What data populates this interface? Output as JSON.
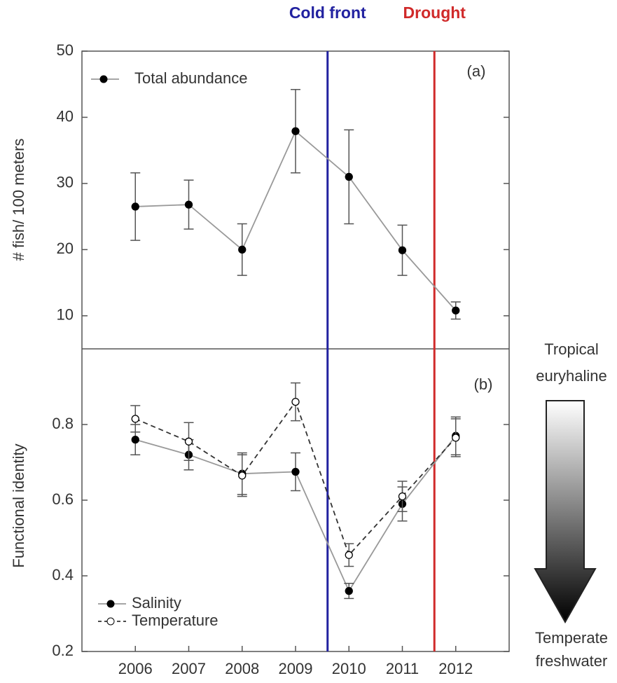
{
  "chart_data": [
    {
      "type": "line",
      "panel_label": "(a)",
      "ylabel": "# fish/ 100 meters",
      "x": [
        2006,
        2007,
        2008,
        2009,
        2010,
        2011,
        2012
      ],
      "xlim": [
        2005,
        2013
      ],
      "ylim": [
        5,
        50
      ],
      "yticks": [
        10,
        20,
        30,
        40,
        50
      ],
      "legend": "upper left",
      "events": [
        {
          "label": "Cold front",
          "x": 2009.6,
          "color": "#2222a0"
        },
        {
          "label": "Drought",
          "x": 2011.6,
          "color": "#d02a2a"
        }
      ],
      "series": [
        {
          "name": "Total abundance",
          "color": "#000000",
          "line_color": "#999999",
          "line_style": "solid",
          "marker": "filled",
          "values": [
            26.5,
            26.8,
            20,
            37.9,
            31,
            19.9,
            10.8
          ],
          "errors": [
            5.1,
            3.7,
            3.9,
            6.3,
            7.1,
            3.8,
            1.3
          ]
        }
      ]
    },
    {
      "type": "line",
      "panel_label": "(b)",
      "ylabel": "Functional identity",
      "x": [
        2006,
        2007,
        2008,
        2009,
        2010,
        2011,
        2012
      ],
      "xlim": [
        2005,
        2013
      ],
      "xticks": [
        2006,
        2007,
        2008,
        2009,
        2010,
        2011,
        2012
      ],
      "ylim": [
        0.2,
        1.0
      ],
      "yticks": [
        0.2,
        0.4,
        0.6,
        0.8
      ],
      "legend": "lower left",
      "gradient_labels": {
        "top": [
          "Tropical",
          "euryhaline"
        ],
        "bottom": [
          "Temperate",
          "freshwater"
        ]
      },
      "series": [
        {
          "name": "Salinity",
          "color": "#000000",
          "line_color": "#999999",
          "line_style": "solid",
          "marker": "filled",
          "values": [
            0.76,
            0.72,
            0.67,
            0.675,
            0.36,
            0.59,
            0.77
          ],
          "errors": [
            0.04,
            0.04,
            0.055,
            0.05,
            0.02,
            0.045,
            0.05
          ]
        },
        {
          "name": "Temperature",
          "color": "#000000",
          "line_color": "#333333",
          "line_style": "dashed",
          "marker": "open",
          "values": [
            0.815,
            0.755,
            0.665,
            0.86,
            0.455,
            0.61,
            0.765
          ],
          "errors": [
            0.035,
            0.05,
            0.055,
            0.05,
            0.03,
            0.04,
            0.05
          ]
        }
      ]
    }
  ]
}
